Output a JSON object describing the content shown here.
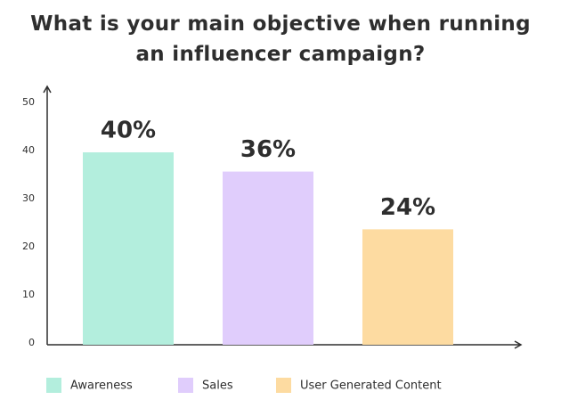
{
  "chart_data": {
    "type": "bar",
    "title": "What is your main objective when running an influencer campaign?",
    "categories": [
      "Awareness",
      "Sales",
      "User Generated Content"
    ],
    "values": [
      40,
      36,
      24
    ],
    "value_labels": [
      "40%",
      "36%",
      "24%"
    ],
    "colors": [
      "#b3eedd",
      "#e0cdfc",
      "#fddba1"
    ],
    "ylim": [
      0,
      50
    ],
    "yticks": [
      0,
      10,
      20,
      30,
      40,
      50
    ],
    "grid": false
  }
}
